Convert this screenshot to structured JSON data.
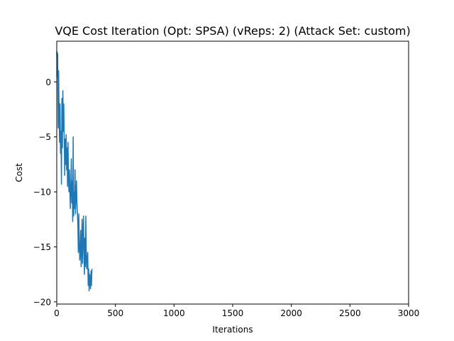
{
  "chart_data": {
    "type": "line",
    "title": "VQE Cost Iteration  (Opt: SPSA) (vReps: 2) (Attack Set: custom)",
    "xlabel": "Iterations",
    "ylabel": "Cost",
    "xlim": [
      0,
      3000
    ],
    "ylim": [
      -20.2,
      3.7
    ],
    "xticks": [
      0,
      500,
      1000,
      1500,
      2000,
      2500,
      3000
    ],
    "yticks": [
      -20,
      -15,
      -10,
      -5,
      0
    ],
    "grid": false,
    "legend": "none",
    "series": [
      {
        "color": "#1f77b4",
        "x": [
          0,
          4,
          8,
          12,
          16,
          20,
          24,
          28,
          32,
          36,
          40,
          44,
          48,
          52,
          56,
          60,
          64,
          68,
          72,
          76,
          80,
          84,
          88,
          92,
          96,
          100,
          104,
          108,
          112,
          116,
          120,
          124,
          128,
          132,
          136,
          140,
          144,
          148,
          152,
          156,
          160,
          164,
          168,
          172,
          176,
          180,
          184,
          188,
          192,
          196,
          200,
          204,
          208,
          212,
          216,
          220,
          224,
          228,
          232,
          236,
          240,
          244,
          248,
          252,
          256,
          260,
          264,
          268,
          272,
          276,
          280,
          284,
          288,
          292,
          296,
          300
        ],
        "y": [
          2.8,
          0.5,
          2.6,
          -4.2,
          1.0,
          -3.0,
          -5.5,
          -2.0,
          -6.5,
          -4.5,
          -9.3,
          -1.5,
          -6.0,
          -0.8,
          -4.5,
          -2.0,
          -5.5,
          -8.5,
          -5.2,
          -7.5,
          -4.8,
          -8.0,
          -6.0,
          -9.5,
          -5.5,
          -8.5,
          -10.0,
          -8.0,
          -9.8,
          -11.5,
          -9.5,
          -7.0,
          -11.0,
          -9.0,
          -12.7,
          -5.0,
          -12.2,
          -10.0,
          -11.5,
          -8.0,
          -12.0,
          -10.5,
          -9.0,
          -11.0,
          -11.8,
          -13.0,
          -15.5,
          -12.0,
          -14.5,
          -16.2,
          -15.6,
          -13.5,
          -16.8,
          -15.0,
          -12.5,
          -16.5,
          -14.0,
          -12.2,
          -15.5,
          -17.5,
          -14.2,
          -16.8,
          -12.2,
          -15.8,
          -17.0,
          -16.0,
          -15.5,
          -18.5,
          -17.0,
          -19.0,
          -17.5,
          -18.0,
          -18.8,
          -17.2,
          -18.5,
          -17.0
        ]
      }
    ]
  }
}
